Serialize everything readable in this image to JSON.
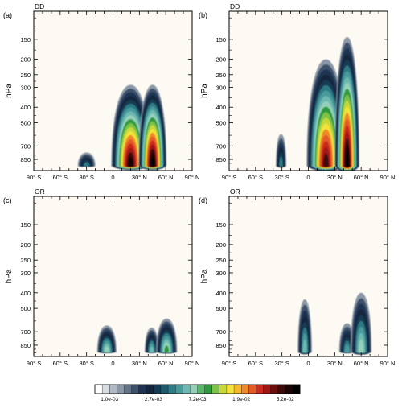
{
  "chart_data": [
    {
      "type": "heatmap",
      "panel_label": "(a)",
      "corner_label": "DD",
      "ylabel": "hPa",
      "x_ticks": [
        "90° S",
        "60° S",
        "30° S",
        "0",
        "30° N",
        "60° N",
        "90° N"
      ],
      "x_tick_values": [
        -90,
        -60,
        -30,
        0,
        30,
        60,
        90
      ],
      "y_ticks": [
        "150",
        "200",
        "250",
        "300",
        "400",
        "500",
        "700",
        "850"
      ],
      "y_tick_values": [
        150,
        200,
        250,
        300,
        400,
        500,
        700,
        850
      ],
      "xlim": [
        -90,
        90
      ],
      "ylim": [
        1000,
        100
      ],
      "y_scale": "log",
      "blobs": [
        {
          "lat": -30,
          "lat_width": 10,
          "p_top": 770,
          "peak_level": 6
        },
        {
          "lat": 20,
          "lat_width": 22,
          "p_top": 290,
          "peak_level": 19
        },
        {
          "lat": 45,
          "lat_width": 16,
          "p_top": 290,
          "peak_level": 20
        }
      ]
    },
    {
      "type": "heatmap",
      "panel_label": "(b)",
      "corner_label": "DD",
      "ylabel": "hPa",
      "x_ticks": [
        "90° S",
        "60° S",
        "30° S",
        "0",
        "30° N",
        "60° N",
        "90° N"
      ],
      "x_tick_values": [
        -90,
        -60,
        -30,
        0,
        30,
        60,
        90
      ],
      "y_ticks": [
        "150",
        "200",
        "250",
        "300",
        "400",
        "500",
        "700",
        "850"
      ],
      "y_tick_values": [
        150,
        200,
        250,
        300,
        400,
        500,
        700,
        850
      ],
      "xlim": [
        -90,
        90
      ],
      "ylim": [
        1000,
        100
      ],
      "y_scale": "log",
      "blobs": [
        {
          "lat": -31,
          "lat_width": 6,
          "p_top": 590,
          "peak_level": 6
        },
        {
          "lat": 20,
          "lat_width": 22,
          "p_top": 200,
          "peak_level": 18
        },
        {
          "lat": 44,
          "lat_width": 14,
          "p_top": 145,
          "peak_level": 20
        }
      ]
    },
    {
      "type": "heatmap",
      "panel_label": "(c)",
      "corner_label": "OR",
      "ylabel": "hPa",
      "x_ticks": [
        "90° S",
        "60° S",
        "30° S",
        "0",
        "30° N",
        "60° N",
        "90° N"
      ],
      "x_tick_values": [
        -90,
        -60,
        -30,
        0,
        30,
        60,
        90
      ],
      "y_ticks": [
        "150",
        "200",
        "250",
        "300",
        "400",
        "500",
        "700",
        "850"
      ],
      "y_tick_values": [
        150,
        200,
        250,
        300,
        400,
        500,
        700,
        850
      ],
      "xlim": [
        -90,
        90
      ],
      "ylim": [
        1000,
        100
      ],
      "y_scale": "log",
      "blobs": [
        {
          "lat": -7,
          "lat_width": 11,
          "p_top": 640,
          "peak_level": 9
        },
        {
          "lat": 44,
          "lat_width": 8,
          "p_top": 660,
          "peak_level": 8
        },
        {
          "lat": 61,
          "lat_width": 12,
          "p_top": 580,
          "peak_level": 10
        }
      ]
    },
    {
      "type": "heatmap",
      "panel_label": "(d)",
      "corner_label": "OR",
      "ylabel": "hPa",
      "x_ticks": [
        "90° S",
        "60° S",
        "30° S",
        "0",
        "30° N",
        "60° N",
        "90° N"
      ],
      "x_tick_values": [
        -90,
        -60,
        -30,
        0,
        30,
        60,
        90
      ],
      "y_ticks": [
        "150",
        "200",
        "250",
        "300",
        "400",
        "500",
        "700",
        "850"
      ],
      "y_tick_values": [
        150,
        200,
        250,
        300,
        400,
        500,
        700,
        850
      ],
      "xlim": [
        -90,
        90
      ],
      "ylim": [
        1000,
        100
      ],
      "y_scale": "log",
      "blobs": [
        {
          "lat": -4,
          "lat_width": 8,
          "p_top": 440,
          "peak_level": 8
        },
        {
          "lat": 44,
          "lat_width": 9,
          "p_top": 620,
          "peak_level": 7
        },
        {
          "lat": 60,
          "lat_width": 12,
          "p_top": 400,
          "peak_level": 9
        }
      ]
    }
  ],
  "colorbar": {
    "labels": [
      "1.0e-03",
      "2.7e-03",
      "7.2e-03",
      "1.9e-02",
      "5.2e-02"
    ],
    "colors": [
      "#ffffff",
      "#d8dde2",
      "#b1bac4",
      "#8a97a6",
      "#647488",
      "#3e516a",
      "#1e3452",
      "#14263c",
      "#163a52",
      "#1f5a6b",
      "#2f7a84",
      "#4a9a9c",
      "#6db9b1",
      "#96d0bb",
      "#5cb56c",
      "#2f9a3e",
      "#7cc24a",
      "#c7d83a",
      "#f4e23a",
      "#f5b82d",
      "#ee8a2a",
      "#e35a26",
      "#c92b1f",
      "#9e1714",
      "#6b0f0e",
      "#3a0a08",
      "#1a0504",
      "#000000"
    ]
  },
  "colors": {
    "plot_background": "#fcfaf2",
    "axis": "#000000"
  }
}
